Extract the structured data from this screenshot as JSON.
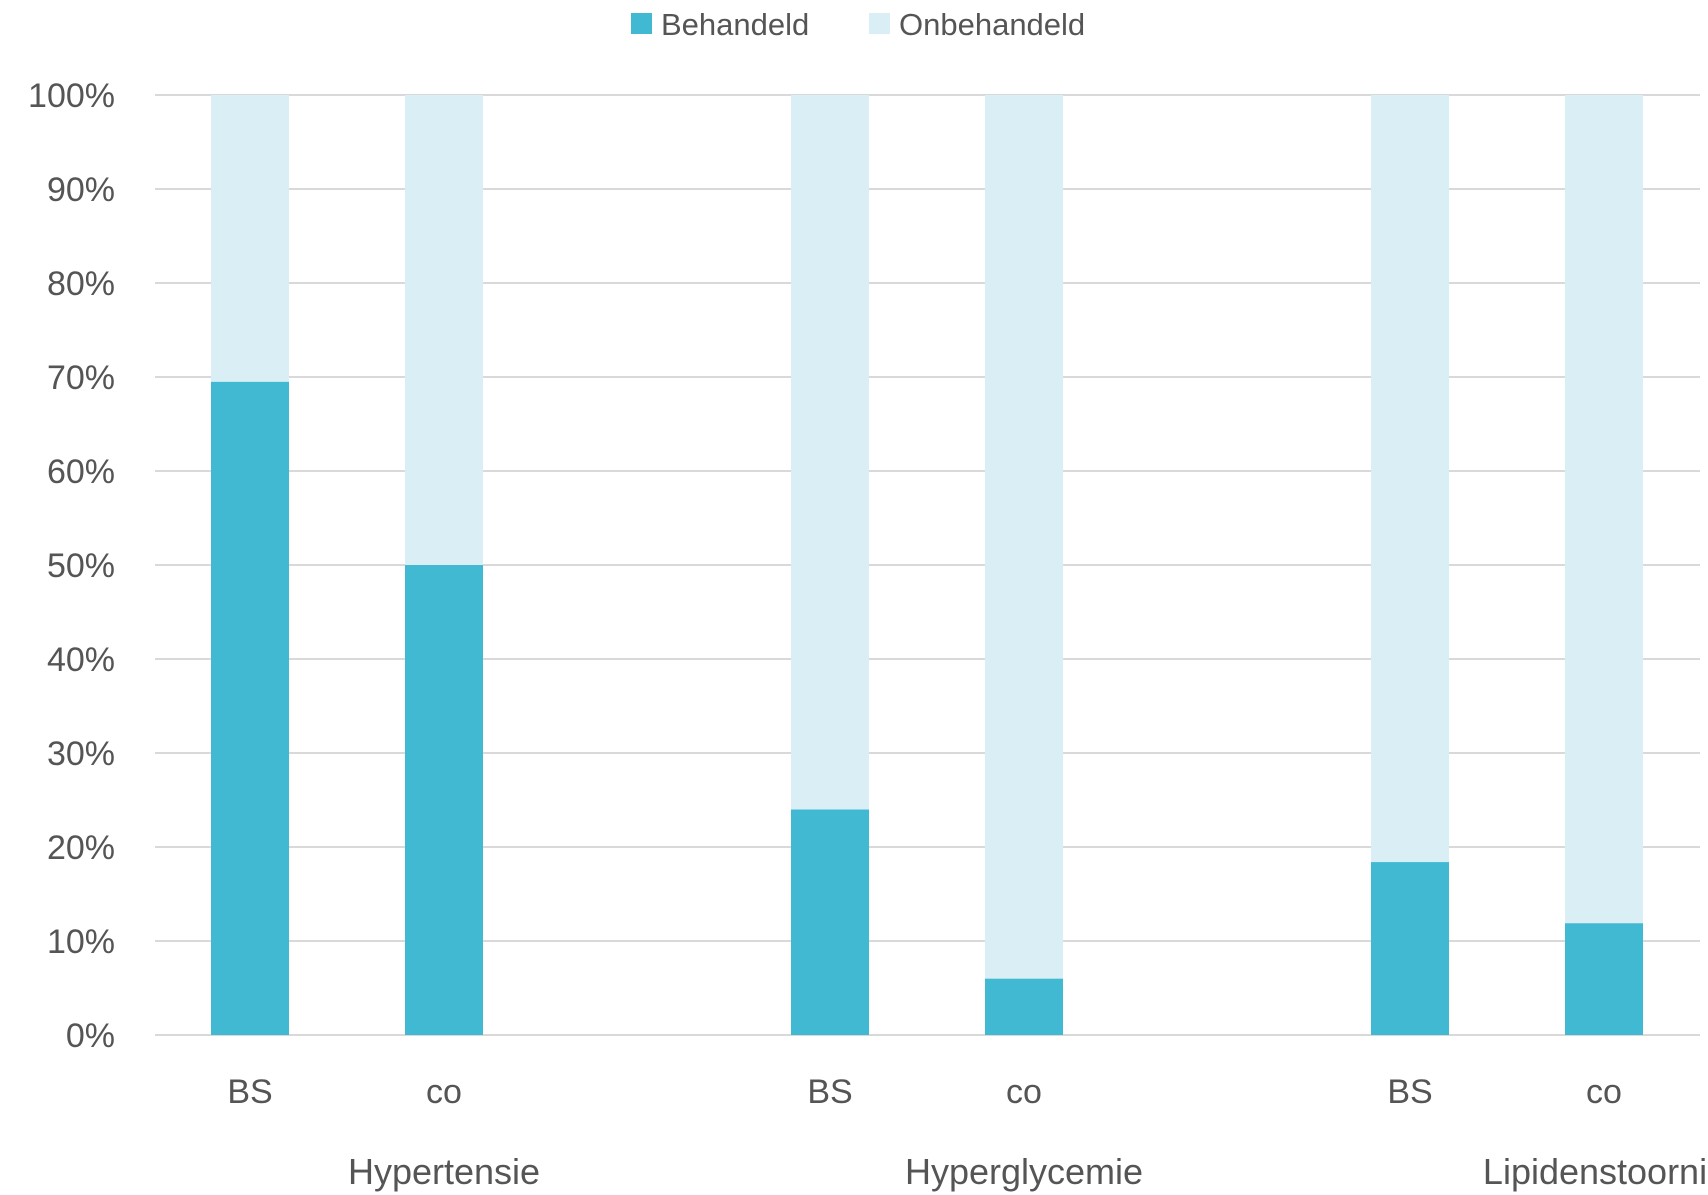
{
  "chart_data": {
    "type": "bar",
    "stacked": true,
    "percent_stacked": true,
    "title": "",
    "xlabel": "",
    "ylabel": "",
    "ylim": [
      0,
      100
    ],
    "y_ticks": [
      "0%",
      "10%",
      "20%",
      "30%",
      "40%",
      "50%",
      "60%",
      "70%",
      "80%",
      "90%",
      "100%"
    ],
    "grid": true,
    "legend_position": "top",
    "groups": [
      "Hypertensie",
      "Hyperglycemie",
      "Lipidenstoornis"
    ],
    "categories": [
      "BS",
      "co",
      "BS",
      "co",
      "BS",
      "co"
    ],
    "series": [
      {
        "name": "Behandeld",
        "color": "#41b9d3",
        "values": [
          69.5,
          50,
          24,
          6,
          18.4,
          11.9
        ]
      },
      {
        "name": "Onbehandeld",
        "color": "#daeff5",
        "values": [
          30.5,
          50,
          76,
          94,
          81.6,
          88.1
        ]
      }
    ]
  }
}
